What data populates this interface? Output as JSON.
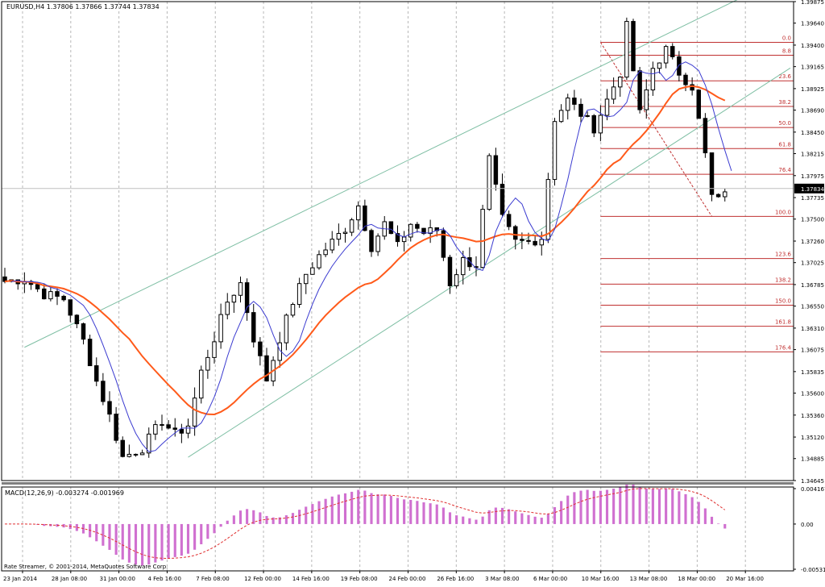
{
  "header": {
    "symbol_line": "EURUSD,H4  1.37806 1.37866 1.37744 1.37834"
  },
  "footer": {
    "copyright": "Rate Streamer, © 2001-2014, MetaQuotes Software Corp."
  },
  "colors": {
    "background": "#ffffff",
    "grid": "#b8b8b8",
    "candles": "#000000",
    "fast_ma": "#3b3bd0",
    "slow_ma": "#ff5a1a",
    "channel": "#7fbfa4",
    "fibo": "#c03030",
    "macd_hist": "#d070d0",
    "macd_signal": "#e03030",
    "bid_line": "#c0c0c0"
  },
  "price_axis": {
    "labels": [
      "1.39875",
      "1.39640",
      "1.39400",
      "1.39165",
      "1.38925",
      "1.38690",
      "1.38450",
      "1.38215",
      "1.37975",
      "1.37735",
      "1.37500",
      "1.37260",
      "1.37025",
      "1.36785",
      "1.36550",
      "1.36310",
      "1.36075",
      "1.35835",
      "1.35600",
      "1.35360",
      "1.35120",
      "1.34885",
      "1.34645"
    ],
    "current_price": "1.37834",
    "ymin": 1.34645,
    "ymax": 1.39875
  },
  "time_axis": {
    "labels": [
      "23 Jan 2014",
      "28 Jan 08:00",
      "31 Jan 00:00",
      "4 Feb 16:00",
      "7 Feb 08:00",
      "12 Feb 00:00",
      "14 Feb 16:00",
      "19 Feb 08:00",
      "24 Feb 00:00",
      "26 Feb 16:00",
      "3 Mar 08:00",
      "6 Mar 00:00",
      "10 Mar 16:00",
      "13 Mar 08:00",
      "18 Mar 00:00",
      "20 Mar 16:00"
    ]
  },
  "fibonacci": {
    "levels": [
      {
        "label": "0.0",
        "price": 1.3943
      },
      {
        "label": "8.8",
        "price": 1.3929
      },
      {
        "label": "23.6",
        "price": 1.3901
      },
      {
        "label": "38.2",
        "price": 1.3873
      },
      {
        "label": "50.0",
        "price": 1.385
      },
      {
        "label": "61.8",
        "price": 1.3827
      },
      {
        "label": "76.4",
        "price": 1.3799
      },
      {
        "label": "100.0",
        "price": 1.3753
      },
      {
        "label": "123.6",
        "price": 1.3707
      },
      {
        "label": "138.2",
        "price": 1.3679
      },
      {
        "label": "150.0",
        "price": 1.3656
      },
      {
        "label": "161.8",
        "price": 1.3633
      },
      {
        "label": "176.4",
        "price": 1.3605
      }
    ]
  },
  "macd": {
    "label": "MACD(12,26,9) -0.003274 -0.001969",
    "axis_labels": [
      "0.004167",
      "0.00",
      "-0.005319"
    ]
  },
  "chart_data": {
    "type": "candlestick",
    "symbol": "EURUSD",
    "timeframe": "H4",
    "points": [
      [
        0,
        1.3682
      ],
      [
        3,
        1.3685
      ],
      [
        6,
        1.3668
      ],
      [
        9,
        1.3663
      ],
      [
        12,
        1.3617
      ],
      [
        14,
        1.3573
      ],
      [
        16,
        1.3535
      ],
      [
        18,
        1.349
      ],
      [
        21,
        1.35
      ],
      [
        24,
        1.353
      ],
      [
        26,
        1.3515
      ],
      [
        28,
        1.3525
      ],
      [
        30,
        1.3583
      ],
      [
        32,
        1.362
      ],
      [
        34,
        1.366
      ],
      [
        36,
        1.368
      ],
      [
        38,
        1.362
      ],
      [
        40,
        1.3575
      ],
      [
        42,
        1.362
      ],
      [
        44,
        1.366
      ],
      [
        46,
        1.369
      ],
      [
        48,
        1.371
      ],
      [
        50,
        1.3725
      ],
      [
        52,
        1.374
      ],
      [
        54,
        1.3765
      ],
      [
        56,
        1.372
      ],
      [
        58,
        1.3745
      ],
      [
        60,
        1.372
      ],
      [
        62,
        1.3745
      ],
      [
        64,
        1.3735
      ],
      [
        66,
        1.3738
      ],
      [
        68,
        1.368
      ],
      [
        70,
        1.3705
      ],
      [
        72,
        1.37
      ],
      [
        74,
        1.3815
      ],
      [
        76,
        1.375
      ],
      [
        78,
        1.3725
      ],
      [
        80,
        1.3725
      ],
      [
        82,
        1.373
      ],
      [
        84,
        1.386
      ],
      [
        86,
        1.388
      ],
      [
        88,
        1.3865
      ],
      [
        90,
        1.385
      ],
      [
        92,
        1.388
      ],
      [
        94,
        1.391
      ],
      [
        95,
        1.396
      ],
      [
        97,
        1.3865
      ],
      [
        99,
        1.3915
      ],
      [
        101,
        1.3935
      ],
      [
        103,
        1.391
      ],
      [
        105,
        1.3895
      ],
      [
        107,
        1.382
      ],
      [
        108,
        1.3775
      ],
      [
        109,
        1.377
      ],
      [
        110,
        1.3783
      ]
    ]
  }
}
